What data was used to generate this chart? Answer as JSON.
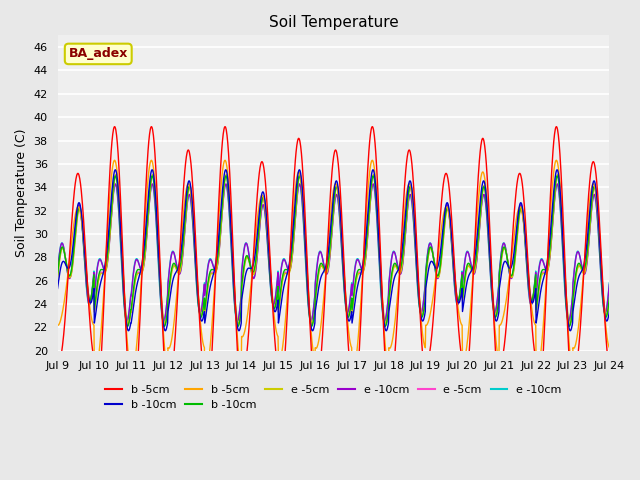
{
  "title": "Soil Temperature",
  "ylabel": "Soil Temperature (C)",
  "ylim": [
    20,
    47
  ],
  "yticks": [
    20,
    22,
    24,
    26,
    28,
    30,
    32,
    34,
    36,
    38,
    40,
    42,
    44,
    46
  ],
  "xtick_labels": [
    "Jul 9",
    "Jul 10",
    "Jul 11",
    "Jul 12",
    "Jul 13",
    "Jul 14",
    "Jul 15",
    "Jul 16",
    "Jul 17",
    "Jul 18",
    "Jul 19",
    "Jul 20",
    "Jul 21",
    "Jul 22",
    "Jul 23",
    "Jul 24"
  ],
  "annotation_text": "BA_adex",
  "annotation_color": "#8B0000",
  "annotation_bg": "#FFFFCC",
  "annotation_border": "#CCCC00",
  "fig_bg": "#E8E8E8",
  "plot_bg": "#EFEFEF",
  "legend_entries": [
    {
      "label": "b -5cm",
      "color": "#FF0000"
    },
    {
      "label": "b -10cm",
      "color": "#0000CC"
    },
    {
      "label": "b -5cm",
      "color": "#FFA500"
    },
    {
      "label": "b -10cm",
      "color": "#00BB00"
    },
    {
      "label": "e -5cm",
      "color": "#CCCC00"
    },
    {
      "label": "e -10cm",
      "color": "#9900CC"
    },
    {
      "label": "e -5cm",
      "color": "#FF44CC"
    },
    {
      "label": "e -10cm",
      "color": "#00CCCC"
    }
  ],
  "n_days": 15,
  "lw": 1.0,
  "series_params": [
    {
      "color": "#FF0000",
      "mean": 27,
      "day_amps": [
        8,
        12,
        12,
        10,
        12,
        9,
        11,
        10,
        12,
        10,
        8,
        11,
        8,
        12,
        9
      ],
      "half_amp": 0.3,
      "phase": 0.0,
      "depth_factor": 1.0,
      "label": "b -5cm"
    },
    {
      "color": "#0000CC",
      "mean": 28,
      "day_amps": [
        3,
        6,
        6,
        5,
        6,
        4,
        6,
        5,
        6,
        5,
        3,
        5,
        3,
        6,
        5
      ],
      "half_amp": 2.0,
      "phase": 0.15,
      "depth_factor": 0.6,
      "label": "b -10cm"
    },
    {
      "color": "#FFA500",
      "mean": 27,
      "day_amps": [
        5,
        9,
        9,
        7,
        9,
        6,
        8,
        7,
        9,
        7,
        5,
        8,
        5,
        9,
        7
      ],
      "half_amp": 0.5,
      "phase": 0.05,
      "depth_factor": 0.85,
      "label": "b -5cm"
    },
    {
      "color": "#00BB00",
      "mean": 28,
      "day_amps": [
        2,
        5,
        5,
        4,
        5,
        3,
        5,
        4,
        5,
        4,
        2,
        4,
        2,
        5,
        4
      ],
      "half_amp": 2.5,
      "phase": 0.2,
      "depth_factor": 0.55,
      "label": "b -10cm"
    },
    {
      "color": "#CCCC00",
      "mean": 28,
      "day_amps": [
        2,
        5,
        5,
        4,
        5,
        3,
        5,
        4,
        5,
        4,
        2,
        4,
        2,
        5,
        4
      ],
      "half_amp": 2.5,
      "phase": 0.05,
      "depth_factor": 0.55,
      "label": "e -5cm"
    },
    {
      "color": "#9900CC",
      "mean": 28,
      "day_amps": [
        2,
        4,
        4,
        3,
        4,
        2,
        4,
        3,
        4,
        3,
        2,
        3,
        2,
        4,
        3
      ],
      "half_amp": 2.8,
      "phase": 0.25,
      "depth_factor": 0.5,
      "label": "e -10cm"
    },
    {
      "color": "#FF44CC",
      "mean": 28,
      "day_amps": [
        2,
        5,
        5,
        4,
        5,
        3,
        5,
        4,
        5,
        4,
        2,
        4,
        2,
        5,
        4
      ],
      "half_amp": 2.5,
      "phase": 0.1,
      "depth_factor": 0.55,
      "label": "e -5cm"
    },
    {
      "color": "#00CCCC",
      "mean": 28,
      "day_amps": [
        2,
        4,
        4,
        3,
        4,
        2,
        4,
        3,
        4,
        3,
        2,
        3,
        2,
        4,
        3
      ],
      "half_amp": 2.8,
      "phase": 0.3,
      "depth_factor": 0.5,
      "label": "e -10cm"
    }
  ]
}
